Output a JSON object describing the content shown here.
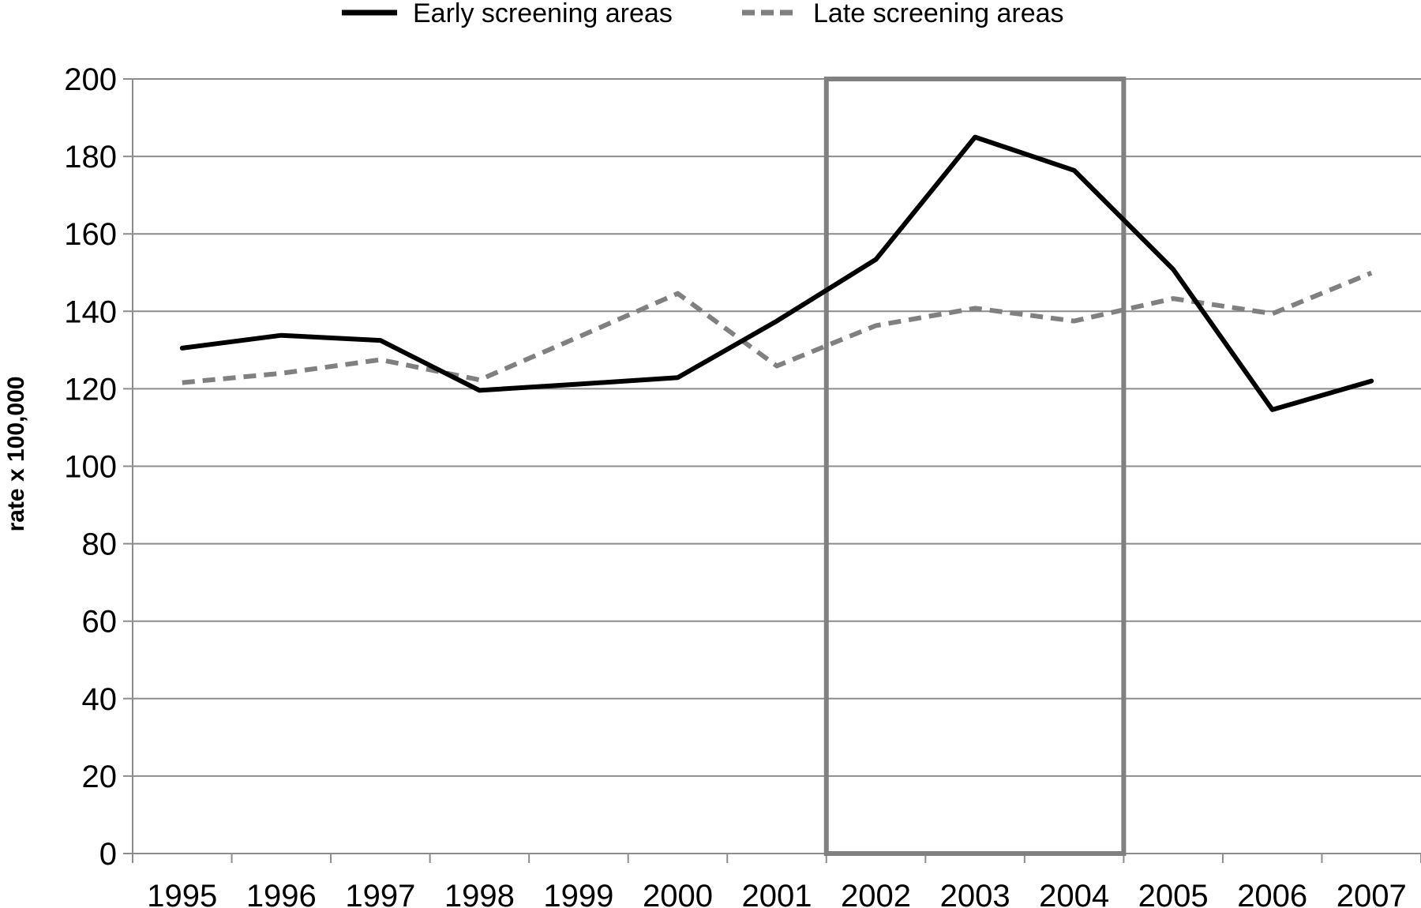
{
  "chart_data": {
    "type": "line",
    "title": "",
    "xlabel": "",
    "ylabel": "rate x 100,000",
    "categories": [
      "1995",
      "1996",
      "1997",
      "1998",
      "1999",
      "2000",
      "2001",
      "2002",
      "2003",
      "2004",
      "2005",
      "2006",
      "2007"
    ],
    "y_ticks": [
      "0",
      "20",
      "40",
      "60",
      "80",
      "100",
      "120",
      "140",
      "160",
      "180",
      "200"
    ],
    "ylim": [
      0,
      200
    ],
    "grid": "horizontal",
    "legend_position": "top",
    "highlight_range": [
      "2002",
      "2004"
    ],
    "series": [
      {
        "name": "Early screening areas",
        "style": "solid",
        "color": "#000000",
        "values": [
          130.5,
          133.8,
          132.5,
          119.6,
          121.2,
          122.9,
          137.5,
          153.4,
          185.0,
          176.4,
          150.8,
          114.6,
          122.0
        ]
      },
      {
        "name": "Late screening areas",
        "style": "dashed",
        "color": "#808080",
        "values": [
          121.6,
          124.0,
          127.5,
          122.3,
          133.4,
          144.6,
          125.9,
          136.3,
          140.8,
          137.5,
          143.3,
          139.4,
          149.9
        ]
      }
    ],
    "highlight_color": "#808080",
    "gridline_color": "#8c8c8c"
  }
}
